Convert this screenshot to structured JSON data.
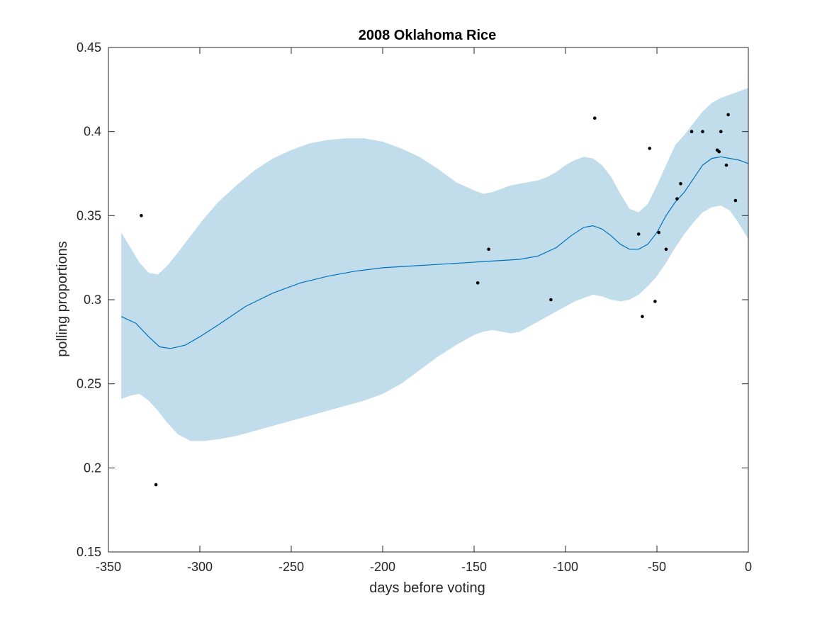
{
  "chart_data": {
    "type": "scatter",
    "title": "2008 Oklahoma Rice",
    "xlabel": "days before voting",
    "ylabel": "polling proportions",
    "xlim": [
      -350,
      0
    ],
    "ylim": [
      0.15,
      0.45
    ],
    "xticks": [
      -350,
      -300,
      -250,
      -200,
      -150,
      -100,
      -50,
      0
    ],
    "yticks": [
      0.15,
      0.2,
      0.25,
      0.3,
      0.35,
      0.4,
      0.45
    ],
    "xtick_labels": [
      "-350",
      "-300",
      "-250",
      "-200",
      "-150",
      "-100",
      "-50",
      "0"
    ],
    "ytick_labels": [
      "0.15",
      "0.2",
      "0.25",
      "0.3",
      "0.35",
      "0.4",
      "0.45"
    ],
    "grid": false,
    "colors": {
      "band": "#c1dceb",
      "line": "#0072bd",
      "points": "#000000",
      "axes": "#262626"
    },
    "series": [
      {
        "type": "scatter",
        "x": [
          -332,
          -324,
          -148,
          -142,
          -108,
          -84,
          -60,
          -58,
          -54,
          -51,
          -49,
          -45,
          -39,
          -37,
          -31,
          -25,
          -17,
          -16,
          -15,
          -12,
          -11,
          -7
        ],
        "y": [
          0.35,
          0.19,
          0.31,
          0.33,
          0.3,
          0.408,
          0.339,
          0.29,
          0.39,
          0.299,
          0.34,
          0.33,
          0.36,
          0.369,
          0.4,
          0.4,
          0.389,
          0.388,
          0.4,
          0.38,
          0.41,
          0.359
        ]
      },
      {
        "type": "line",
        "x": [
          -343,
          -335,
          -328,
          -322,
          -316,
          -308,
          -300,
          -290,
          -275,
          -260,
          -245,
          -230,
          -215,
          -200,
          -185,
          -170,
          -155,
          -140,
          -125,
          -115,
          -105,
          -97,
          -90,
          -85,
          -80,
          -75,
          -70,
          -65,
          -60,
          -55,
          -50,
          -45,
          -40,
          -35,
          -30,
          -25,
          -20,
          -15,
          -10,
          -5,
          0
        ],
        "y": [
          0.29,
          0.286,
          0.278,
          0.272,
          0.271,
          0.273,
          0.278,
          0.285,
          0.296,
          0.304,
          0.31,
          0.314,
          0.317,
          0.319,
          0.32,
          0.321,
          0.322,
          0.323,
          0.324,
          0.326,
          0.331,
          0.338,
          0.343,
          0.344,
          0.342,
          0.338,
          0.333,
          0.33,
          0.33,
          0.333,
          0.34,
          0.35,
          0.358,
          0.364,
          0.372,
          0.38,
          0.384,
          0.385,
          0.384,
          0.383,
          0.381
        ]
      },
      {
        "type": "area",
        "x": [
          -343,
          -338,
          -333,
          -328,
          -323,
          -318,
          -312,
          -305,
          -298,
          -290,
          -280,
          -270,
          -260,
          -250,
          -240,
          -230,
          -220,
          -210,
          -200,
          -190,
          -180,
          -170,
          -160,
          -150,
          -145,
          -140,
          -135,
          -130,
          -125,
          -120,
          -115,
          -110,
          -105,
          -100,
          -95,
          -90,
          -85,
          -80,
          -75,
          -70,
          -65,
          -60,
          -55,
          -50,
          -45,
          -40,
          -35,
          -30,
          -25,
          -20,
          -15,
          -10,
          -5,
          0
        ],
        "upper": [
          0.34,
          0.331,
          0.322,
          0.316,
          0.315,
          0.32,
          0.328,
          0.338,
          0.348,
          0.358,
          0.368,
          0.377,
          0.384,
          0.389,
          0.393,
          0.395,
          0.396,
          0.396,
          0.394,
          0.39,
          0.385,
          0.378,
          0.37,
          0.365,
          0.363,
          0.364,
          0.366,
          0.368,
          0.369,
          0.37,
          0.371,
          0.373,
          0.376,
          0.38,
          0.383,
          0.385,
          0.384,
          0.38,
          0.373,
          0.363,
          0.354,
          0.352,
          0.357,
          0.368,
          0.38,
          0.392,
          0.398,
          0.405,
          0.412,
          0.417,
          0.42,
          0.422,
          0.424,
          0.426
        ],
        "lower": [
          0.241,
          0.243,
          0.244,
          0.24,
          0.234,
          0.227,
          0.22,
          0.216,
          0.216,
          0.217,
          0.219,
          0.222,
          0.225,
          0.228,
          0.231,
          0.234,
          0.237,
          0.24,
          0.244,
          0.25,
          0.258,
          0.266,
          0.273,
          0.279,
          0.281,
          0.282,
          0.281,
          0.28,
          0.281,
          0.284,
          0.287,
          0.29,
          0.293,
          0.296,
          0.299,
          0.301,
          0.303,
          0.302,
          0.3,
          0.299,
          0.3,
          0.303,
          0.308,
          0.314,
          0.322,
          0.331,
          0.339,
          0.346,
          0.352,
          0.355,
          0.356,
          0.353,
          0.345,
          0.336
        ]
      }
    ]
  }
}
